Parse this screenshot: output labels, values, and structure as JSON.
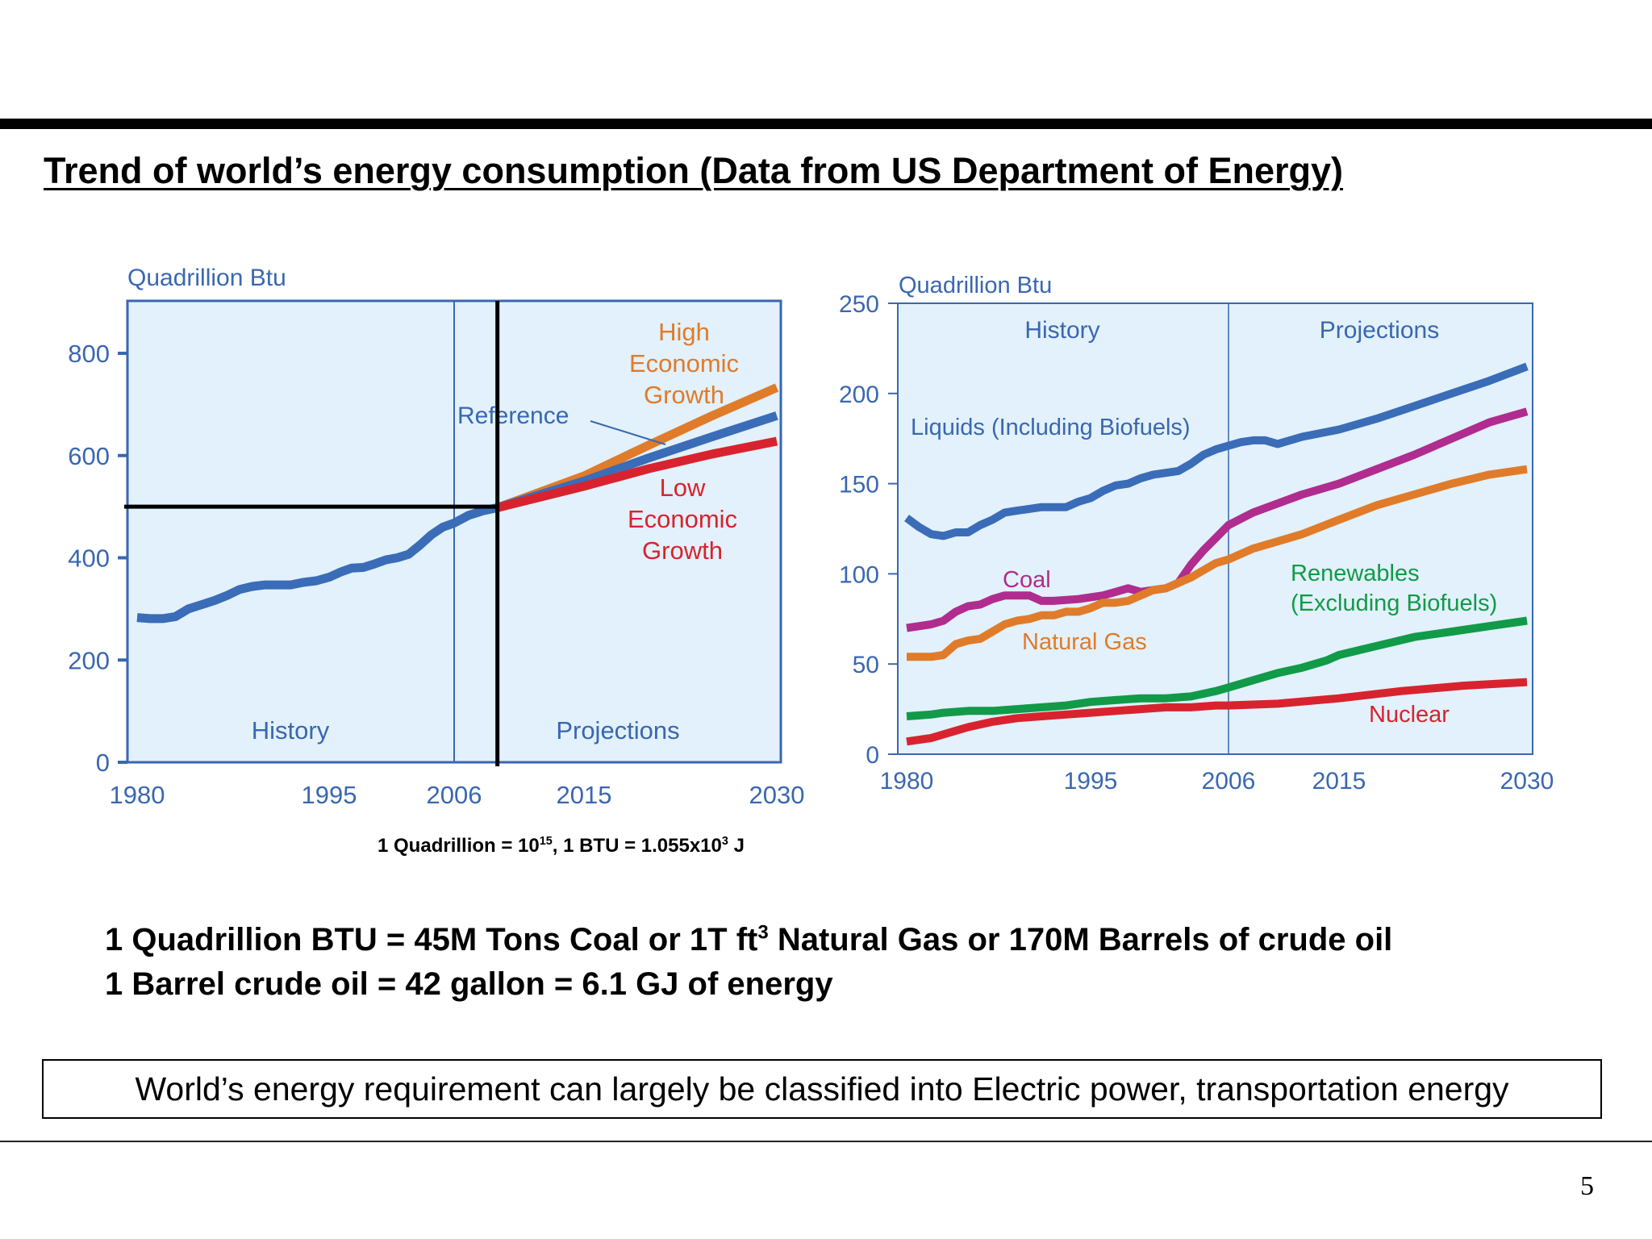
{
  "slide": {
    "title": "Trend of world’s energy consumption (Data from US Department of Energy)",
    "note_prefix": "1 Quadrillion = 10",
    "note_exp1": "15",
    "note_mid": ", 1 BTU = 1.055x10",
    "note_exp2": "3",
    "note_suffix": " J",
    "conversion_line1_a": "1 Quadrillion BTU = 45M Tons Coal or 1T ft",
    "conversion_line1_exp": "3",
    "conversion_line1_b": " Natural Gas or 170M Barrels of crude oil",
    "conversion_line2": "1 Barrel crude oil = 42 gallon = 6.1 GJ of energy",
    "summary": "World’s energy requirement can largely be classified into Electric power, transportation energy",
    "page_number": "5"
  },
  "colors": {
    "axis": "#3a67b0",
    "plot_bg": "#e2f1fb",
    "blue": "#3a6cb8",
    "orange": "#e07b2a",
    "red": "#d8232e",
    "magenta": "#b02c8f",
    "green": "#119a48",
    "black": "#000000"
  },
  "chart_data": [
    {
      "type": "line",
      "title": "",
      "ylabel": "Quadrillion Btu",
      "xlabel": "",
      "xlim": [
        1980,
        2030
      ],
      "ylim": [
        0,
        900
      ],
      "x_ticks": [
        1980,
        1995,
        2006,
        2015,
        2030
      ],
      "y_ticks": [
        0,
        200,
        400,
        600,
        800
      ],
      "grid": false,
      "regions": [
        {
          "label": "History",
          "x_range": [
            1980,
            2006
          ]
        },
        {
          "label": "Projections",
          "x_range": [
            2006,
            2030
          ]
        }
      ],
      "region_divider_x": 2006,
      "annotation_lines": {
        "vertical_x": 2009,
        "horizontal_y": 500
      },
      "series": [
        {
          "name": "History",
          "color_key": "blue",
          "x": [
            1980,
            1981,
            1982,
            1983,
            1984,
            1985,
            1986,
            1987,
            1988,
            1989,
            1990,
            1991,
            1992,
            1993,
            1994,
            1995,
            1996,
            1997,
            1998,
            1999,
            2000,
            2001,
            2002,
            2003,
            2004,
            2005,
            2006,
            2007,
            2008,
            2009
          ],
          "y": [
            283,
            281,
            281,
            285,
            300,
            308,
            316,
            326,
            338,
            344,
            347,
            347,
            347,
            352,
            355,
            362,
            372,
            380,
            381,
            388,
            396,
            400,
            407,
            425,
            445,
            460,
            468,
            483,
            492,
            498
          ]
        },
        {
          "name": "High Economic Growth",
          "label": [
            "High",
            "Economic",
            "Growth"
          ],
          "color_key": "orange",
          "x": [
            2009,
            2015,
            2020,
            2025,
            2030
          ],
          "y": [
            498,
            560,
            620,
            678,
            733
          ]
        },
        {
          "name": "Reference",
          "label": [
            "Reference"
          ],
          "color_key": "blue",
          "x": [
            2009,
            2015,
            2020,
            2025,
            2030
          ],
          "y": [
            498,
            550,
            595,
            637,
            678
          ]
        },
        {
          "name": "Low Economic Growth",
          "label": [
            "Low",
            "Economic",
            "Growth"
          ],
          "color_key": "red",
          "x": [
            2009,
            2015,
            2020,
            2025,
            2030
          ],
          "y": [
            498,
            540,
            574,
            603,
            628
          ]
        }
      ]
    },
    {
      "type": "line",
      "title": "",
      "ylabel": "Quadrillion Btu",
      "xlabel": "",
      "xlim": [
        1980,
        2030
      ],
      "ylim": [
        0,
        250
      ],
      "x_ticks": [
        1980,
        1995,
        2006,
        2015,
        2030
      ],
      "y_ticks": [
        0,
        50,
        100,
        150,
        200,
        250
      ],
      "grid": false,
      "regions": [
        {
          "label": "History",
          "x_range": [
            1980,
            2006
          ]
        },
        {
          "label": "Projections",
          "x_range": [
            2006,
            2030
          ]
        }
      ],
      "region_divider_x": 2006,
      "series": [
        {
          "name": "Liquids (Including Biofuels)",
          "color_key": "blue",
          "x": [
            1980,
            1981,
            1982,
            1983,
            1984,
            1985,
            1986,
            1987,
            1988,
            1989,
            1990,
            1991,
            1992,
            1993,
            1994,
            1995,
            1996,
            1997,
            1998,
            1999,
            2000,
            2001,
            2002,
            2003,
            2004,
            2005,
            2006,
            2007,
            2008,
            2009,
            2010,
            2012,
            2015,
            2018,
            2021,
            2024,
            2027,
            2030
          ],
          "y": [
            131,
            126,
            122,
            121,
            123,
            123,
            127,
            130,
            134,
            135,
            136,
            137,
            137,
            137,
            140,
            142,
            146,
            149,
            150,
            153,
            155,
            156,
            157,
            161,
            166,
            169,
            171,
            173,
            174,
            174,
            172,
            176,
            180,
            186,
            193,
            200,
            207,
            215
          ]
        },
        {
          "name": "Coal",
          "color_key": "magenta",
          "x": [
            1980,
            1982,
            1983,
            1984,
            1985,
            1986,
            1987,
            1988,
            1989,
            1990,
            1991,
            1992,
            1994,
            1996,
            1997,
            1998,
            1999,
            2000,
            2001,
            2002,
            2003,
            2004,
            2005,
            2006,
            2008,
            2010,
            2012,
            2014,
            2015,
            2018,
            2021,
            2024,
            2027,
            2030
          ],
          "y": [
            70,
            72,
            74,
            79,
            82,
            83,
            86,
            88,
            88,
            88,
            85,
            85,
            86,
            88,
            90,
            92,
            90,
            91,
            92,
            95,
            105,
            113,
            120,
            127,
            134,
            139,
            144,
            148,
            150,
            158,
            166,
            175,
            184,
            190
          ]
        },
        {
          "name": "Natural Gas",
          "color_key": "orange",
          "x": [
            1980,
            1982,
            1983,
            1984,
            1985,
            1986,
            1987,
            1988,
            1989,
            1990,
            1991,
            1992,
            1993,
            1994,
            1995,
            1996,
            1997,
            1998,
            1999,
            2000,
            2001,
            2002,
            2003,
            2004,
            2005,
            2006,
            2008,
            2010,
            2012,
            2015,
            2018,
            2021,
            2024,
            2027,
            2030
          ],
          "y": [
            54,
            54,
            55,
            61,
            63,
            64,
            68,
            72,
            74,
            75,
            77,
            77,
            79,
            79,
            81,
            84,
            84,
            85,
            88,
            91,
            92,
            95,
            98,
            102,
            106,
            108,
            114,
            118,
            122,
            130,
            138,
            144,
            150,
            155,
            158
          ]
        },
        {
          "name": "Renewables (Excluding Biofuels)",
          "label": [
            "Renewables",
            "(Excluding Biofuels)"
          ],
          "color_key": "green",
          "x": [
            1980,
            1982,
            1983,
            1985,
            1987,
            1989,
            1991,
            1993,
            1995,
            1997,
            1999,
            2001,
            2003,
            2005,
            2006,
            2008,
            2010,
            2012,
            2014,
            2015,
            2018,
            2021,
            2024,
            2027,
            2030
          ],
          "y": [
            21,
            22,
            23,
            24,
            24,
            25,
            26,
            27,
            29,
            30,
            31,
            31,
            32,
            35,
            37,
            41,
            45,
            48,
            52,
            55,
            60,
            65,
            68,
            71,
            74
          ]
        },
        {
          "name": "Nuclear",
          "color_key": "red",
          "x": [
            1980,
            1982,
            1983,
            1984,
            1985,
            1987,
            1989,
            1991,
            1993,
            1995,
            1997,
            1999,
            2001,
            2003,
            2005,
            2006,
            2010,
            2015,
            2020,
            2025,
            2030
          ],
          "y": [
            7,
            9,
            11,
            13,
            15,
            18,
            20,
            21,
            22,
            23,
            24,
            25,
            26,
            26,
            27,
            27,
            28,
            31,
            35,
            38,
            40
          ]
        }
      ]
    }
  ],
  "left_chart_labels": {
    "y_axis_title": "Quadrillion Btu",
    "history": "History",
    "projections": "Projections",
    "high": [
      "High",
      "Economic",
      "Growth"
    ],
    "reference": "Reference",
    "low": [
      "Low",
      "Economic",
      "Growth"
    ]
  },
  "right_chart_labels": {
    "y_axis_title": "Quadrillion Btu",
    "history": "History",
    "projections": "Projections",
    "liquids": "Liquids (Including Biofuels)",
    "coal": "Coal",
    "natural_gas": "Natural Gas",
    "renewables": [
      "Renewables",
      "(Excluding Biofuels)"
    ],
    "nuclear": "Nuclear"
  }
}
